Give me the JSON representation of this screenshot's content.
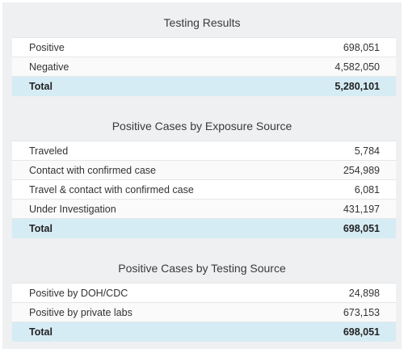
{
  "sections": [
    {
      "title": "Testing Results",
      "rows": [
        {
          "label": "Positive",
          "value": "698,051"
        },
        {
          "label": "Negative",
          "value": "4,582,050"
        }
      ],
      "total": {
        "label": "Total",
        "value": "5,280,101"
      }
    },
    {
      "title": "Positive Cases by Exposure Source",
      "rows": [
        {
          "label": "Traveled",
          "value": "5,784"
        },
        {
          "label": "Contact with confirmed case",
          "value": "254,989"
        },
        {
          "label": "Travel & contact with confirmed case",
          "value": "6,081"
        },
        {
          "label": "Under Investigation",
          "value": "431,197"
        }
      ],
      "total": {
        "label": "Total",
        "value": "698,051"
      }
    },
    {
      "title": "Positive Cases by Testing Source",
      "rows": [
        {
          "label": "Positive by DOH/CDC",
          "value": "24,898"
        },
        {
          "label": "Positive by private labs",
          "value": "673,153"
        }
      ],
      "total": {
        "label": "Total",
        "value": "698,051"
      }
    }
  ]
}
